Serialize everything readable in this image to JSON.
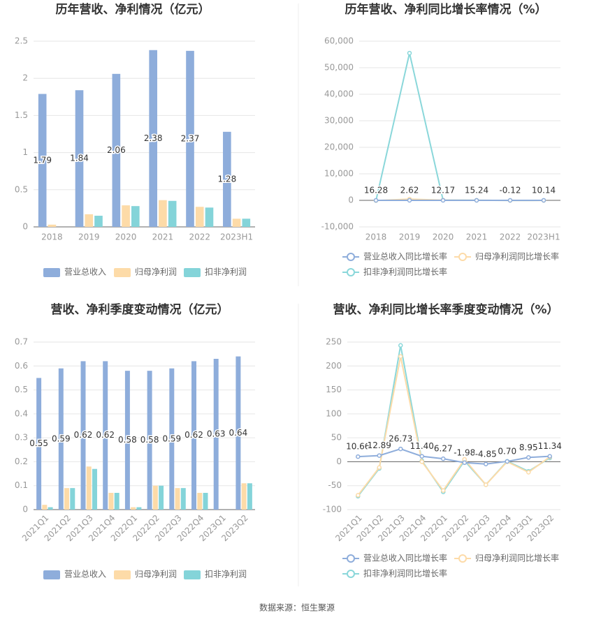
{
  "chart_data": [
    {
      "type": "bar",
      "title": "历年营收、净利情况（亿元）",
      "categories": [
        "2018",
        "2019",
        "2020",
        "2021",
        "2022",
        "2023H1"
      ],
      "series": [
        {
          "name": "营业总收入",
          "color": "#8eaddb",
          "values": [
            1.79,
            1.84,
            2.06,
            2.38,
            2.37,
            1.28
          ],
          "data_labels": true
        },
        {
          "name": "归母净利润",
          "color": "#fddba8",
          "values": [
            0.03,
            0.17,
            0.29,
            0.36,
            0.27,
            0.11
          ]
        },
        {
          "name": "扣非净利润",
          "color": "#84d4d9",
          "values": [
            0,
            0.15,
            0.28,
            0.35,
            0.26,
            0.11
          ]
        }
      ],
      "ylim": [
        0,
        2.5
      ],
      "yticks": [
        0,
        0.5,
        1,
        1.5,
        2,
        2.5
      ],
      "grid": true
    },
    {
      "type": "line",
      "title": "历年营收、净利同比增长率情况（%）",
      "categories": [
        "2018",
        "2019",
        "2020",
        "2021",
        "2022",
        "2023H1"
      ],
      "series": [
        {
          "name": "营业总收入同比增长率",
          "color": "#8eaddb",
          "values": [
            16.28,
            2.62,
            12.17,
            15.24,
            -0.12,
            10.14
          ],
          "data_labels": true
        },
        {
          "name": "归母净利润同比增长率",
          "color": "#fddba8",
          "values": [
            -50,
            467,
            70,
            24,
            -25,
            -20
          ]
        },
        {
          "name": "扣非净利润同比增长率",
          "color": "#8ad7da",
          "values": [
            -90,
            55500,
            87,
            25,
            -26,
            -15
          ]
        }
      ],
      "ylim": [
        -10000,
        60000
      ],
      "yticks": [
        {
          "value": -10000,
          "label": "-10,000"
        },
        0,
        {
          "value": 10000,
          "label": "10,000"
        },
        {
          "value": 20000,
          "label": "20,000"
        },
        {
          "value": 30000,
          "label": "30,000"
        },
        {
          "value": 40000,
          "label": "40,000"
        },
        {
          "value": 50000,
          "label": "50,000"
        },
        {
          "value": 60000,
          "label": "60,000"
        }
      ],
      "grid": true
    },
    {
      "type": "bar",
      "title": "营收、净利季度变动情况（亿元）",
      "categories": [
        "2021Q1",
        "2021Q2",
        "2021Q3",
        "2021Q4",
        "2022Q1",
        "2022Q2",
        "2022Q3",
        "2022Q4",
        "2023Q1",
        "2023Q2"
      ],
      "series": [
        {
          "name": "营业总收入",
          "color": "#8eaddb",
          "values": [
            0.55,
            0.59,
            0.62,
            0.62,
            0.58,
            0.58,
            0.59,
            0.62,
            0.63,
            0.64
          ],
          "data_labels": true
        },
        {
          "name": "归母净利润",
          "color": "#fddba8",
          "values": [
            0.02,
            0.09,
            0.18,
            0.07,
            0.01,
            0.1,
            0.09,
            0.07,
            0,
            0.11
          ]
        },
        {
          "name": "扣非净利润",
          "color": "#84d4d9",
          "values": [
            0.01,
            0.09,
            0.17,
            0.07,
            0.01,
            0.1,
            0.09,
            0.07,
            0,
            0.11
          ]
        }
      ],
      "ylim": [
        0,
        0.7
      ],
      "yticks": [
        0,
        0.1,
        0.2,
        0.3,
        0.4,
        0.5,
        0.6,
        0.7
      ],
      "grid": true
    },
    {
      "type": "line",
      "title": "营收、净利同比增长率季度变动情况（%）",
      "categories": [
        "2021Q1",
        "2021Q2",
        "2021Q3",
        "2021Q4",
        "2022Q1",
        "2022Q2",
        "2022Q3",
        "2022Q4",
        "2023Q1",
        "2023Q2"
      ],
      "series": [
        {
          "name": "营业总收入同比增长率",
          "color": "#8eaddb",
          "values": [
            10.66,
            12.89,
            26.73,
            11.4,
            6.27,
            -1.98,
            -4.85,
            0.7,
            8.95,
            11.34
          ],
          "value_labels": [
            "10.66",
            "12.89",
            "26.73",
            "11.40",
            "6.27",
            "-1.98",
            "-4.85",
            "0.70",
            "8.95",
            "11.34"
          ],
          "data_labels": true
        },
        {
          "name": "归母净利润同比增长率",
          "color": "#fddba8",
          "values": [
            -70,
            -12,
            220,
            0,
            -60,
            5,
            -48,
            0,
            -22,
            10
          ]
        },
        {
          "name": "扣非净利润同比增长率",
          "color": "#8ad7da",
          "values": [
            -72,
            -14,
            243,
            2,
            -63,
            2,
            -48,
            1,
            -20,
            8
          ]
        }
      ],
      "ylim": [
        -100,
        250
      ],
      "yticks": [
        -100,
        -50,
        0,
        50,
        100,
        150,
        200,
        250
      ],
      "grid": true
    }
  ],
  "source": "数据来源：恒生聚源"
}
